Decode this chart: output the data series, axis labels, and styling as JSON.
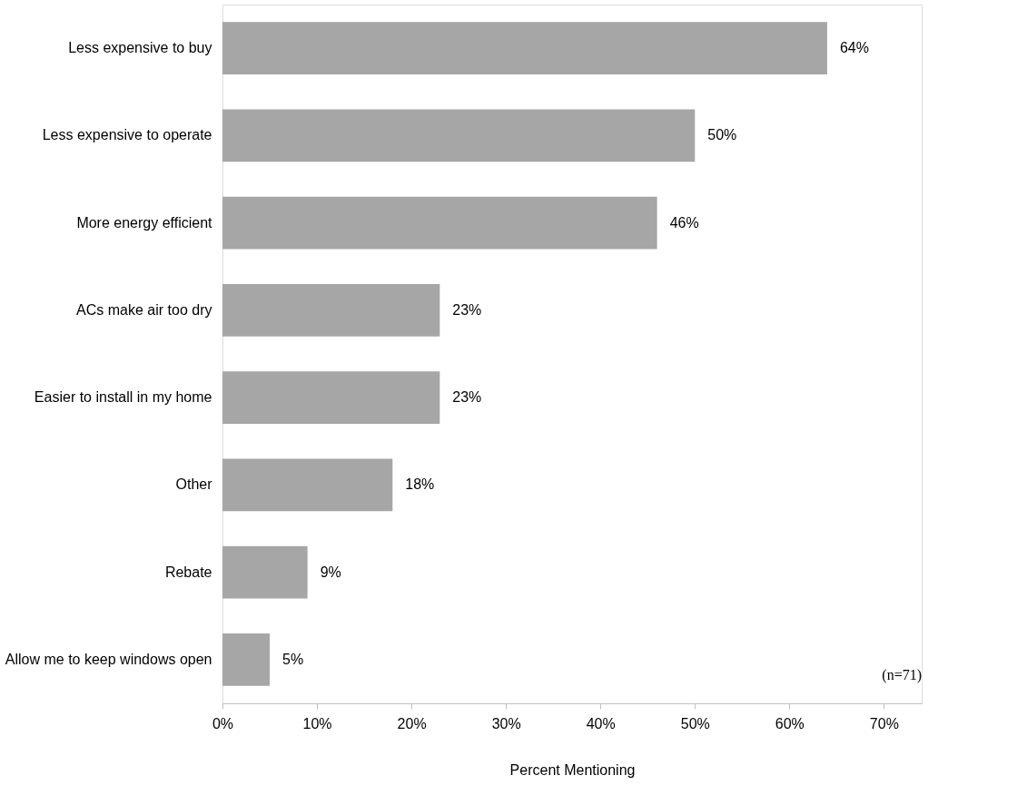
{
  "chart_data": {
    "type": "bar",
    "orientation": "horizontal",
    "xlabel": "Percent Mentioning",
    "categories": [
      "Less expensive to buy",
      "Less expensive to operate",
      "More energy efficient",
      "ACs make air too dry",
      "Easier to install in my home",
      "Other",
      "Rebate",
      "Allow me to keep windows open"
    ],
    "values": [
      64,
      50,
      46,
      23,
      23,
      18,
      9,
      5
    ],
    "value_labels": [
      "64%",
      "50%",
      "46%",
      "23%",
      "23%",
      "18%",
      "9%",
      "5%"
    ],
    "color": "#a6a6a6",
    "xlim": [
      0,
      74
    ],
    "xticks": [
      {
        "value": 0,
        "label": "0%"
      },
      {
        "value": 10,
        "label": "10%"
      },
      {
        "value": 20,
        "label": "20%"
      },
      {
        "value": 30,
        "label": "30%"
      },
      {
        "value": 40,
        "label": "40%"
      },
      {
        "value": 50,
        "label": "50%"
      },
      {
        "value": 60,
        "label": "60%"
      },
      {
        "value": 70,
        "label": "70%"
      }
    ],
    "grid": false,
    "annotations": [
      "(n=71)"
    ]
  }
}
